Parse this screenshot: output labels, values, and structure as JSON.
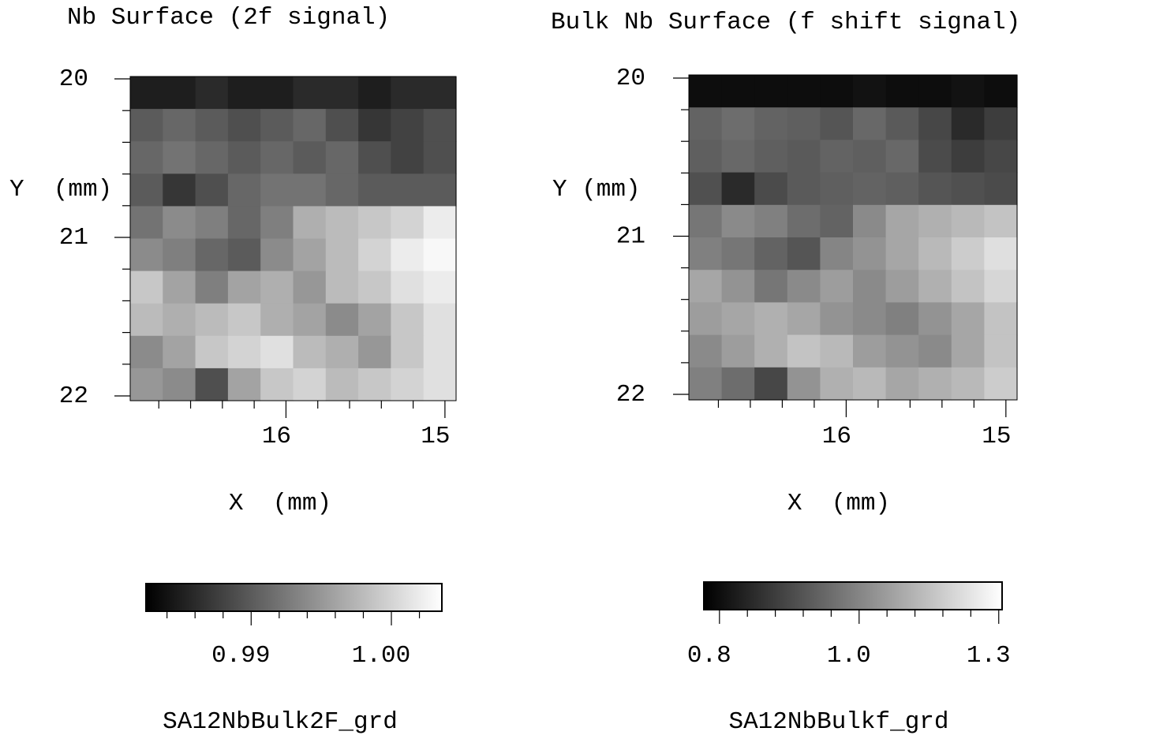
{
  "chart_data": [
    {
      "type": "heatmap",
      "title": "Nb Surface (2f signal)",
      "xlabel": "X  (mm)",
      "ylabel": "Y  (mm)",
      "xlim": [
        16.98,
        14.93
      ],
      "ylim": [
        19.985,
        22.03
      ],
      "xticks": [
        16,
        15
      ],
      "xminorticks": [
        16.8,
        16.6,
        16.4,
        16.2,
        15.8,
        15.6,
        15.4,
        15.2
      ],
      "yticks": [
        20,
        21,
        22
      ],
      "yminorticks": [
        20.2,
        20.4,
        20.6,
        20.8,
        21.2,
        21.4,
        21.6,
        21.8
      ],
      "colorbar": {
        "label": "SA12NbBulk2F_grd",
        "clim": [
          0.9825,
          1.0036
        ],
        "ticks": [
          0.99,
          {
            "value": 1,
            "label": "1.00"
          }
        ],
        "minorticks": [
          0.984,
          0.986,
          0.988,
          0.992,
          0.994,
          0.996,
          0.998,
          1.002
        ]
      },
      "z": [
        [
          0.985,
          0.985,
          0.986,
          0.985,
          0.985,
          0.986,
          0.986,
          0.985,
          0.986,
          0.986
        ],
        [
          0.99,
          0.991,
          0.99,
          0.989,
          0.99,
          0.991,
          0.989,
          0.987,
          0.988,
          0.989
        ],
        [
          0.991,
          0.992,
          0.991,
          0.99,
          0.991,
          0.99,
          0.991,
          0.989,
          0.988,
          0.989
        ],
        [
          0.99,
          0.987,
          0.989,
          0.991,
          0.992,
          0.992,
          0.991,
          0.99,
          0.99,
          0.99
        ],
        [
          0.992,
          0.994,
          0.993,
          0.991,
          0.993,
          0.997,
          0.998,
          0.999,
          1.0,
          1.002
        ],
        [
          0.994,
          0.993,
          0.991,
          0.99,
          0.994,
          0.996,
          0.998,
          1.0,
          1.002,
          1.003
        ],
        [
          0.999,
          0.996,
          0.993,
          0.996,
          0.997,
          0.995,
          0.998,
          0.999,
          1.001,
          1.002
        ],
        [
          0.998,
          0.997,
          0.998,
          0.999,
          0.997,
          0.996,
          0.994,
          0.996,
          0.999,
          1.001
        ],
        [
          0.994,
          0.996,
          0.999,
          1.0,
          1.001,
          0.998,
          0.997,
          0.995,
          0.999,
          1.001
        ],
        [
          0.995,
          0.994,
          0.989,
          0.996,
          0.999,
          1.0,
          0.998,
          0.999,
          1.0,
          1.001
        ]
      ]
    },
    {
      "type": "heatmap",
      "title": "Bulk Nb Surface (f shift signal)",
      "xlabel": "X  (mm)",
      "ylabel": "Y (mm)",
      "xlim": [
        16.985,
        14.93
      ],
      "ylim": [
        19.98,
        22.035
      ],
      "xticks": [
        16,
        15
      ],
      "xminorticks": [
        16.8,
        16.6,
        16.4,
        16.2,
        15.8,
        15.6,
        15.4,
        15.2
      ],
      "yticks": [
        20,
        21,
        22
      ],
      "yminorticks": [
        20.2,
        20.4,
        20.6,
        20.8,
        21.2,
        21.4,
        21.6,
        21.8
      ],
      "colorbar": {
        "label": "SA12NbBulkf_grd",
        "clim": [
          0.772,
          1.306
        ],
        "ticks": [
          0.8,
          {
            "value": 1.05,
            "label": "1.0"
          },
          1.3
        ],
        "minorticks": [
          0.85,
          0.9,
          0.95,
          1.0,
          1.1,
          1.15,
          1.2,
          1.25
        ]
      },
      "z": [
        [
          0.8,
          0.8,
          0.8,
          0.8,
          0.8,
          0.81,
          0.8,
          0.8,
          0.81,
          0.8
        ],
        [
          0.98,
          1.0,
          0.98,
          0.97,
          0.95,
          0.99,
          0.96,
          0.92,
          0.86,
          0.9
        ],
        [
          0.97,
          0.99,
          0.97,
          0.96,
          0.98,
          0.97,
          0.99,
          0.93,
          0.9,
          0.92
        ],
        [
          0.94,
          0.86,
          0.93,
          0.96,
          0.97,
          0.98,
          0.97,
          0.95,
          0.94,
          0.93
        ],
        [
          1.02,
          1.06,
          1.04,
          1.0,
          0.98,
          1.06,
          1.12,
          1.14,
          1.16,
          1.18
        ],
        [
          1.04,
          1.02,
          0.98,
          0.95,
          1.05,
          1.08,
          1.12,
          1.16,
          1.2,
          1.24
        ],
        [
          1.12,
          1.08,
          1.02,
          1.06,
          1.1,
          1.06,
          1.1,
          1.14,
          1.18,
          1.22
        ],
        [
          1.1,
          1.12,
          1.14,
          1.12,
          1.08,
          1.06,
          1.04,
          1.08,
          1.12,
          1.18
        ],
        [
          1.06,
          1.1,
          1.14,
          1.18,
          1.16,
          1.1,
          1.08,
          1.06,
          1.12,
          1.18
        ],
        [
          1.04,
          1.0,
          0.92,
          1.08,
          1.14,
          1.16,
          1.12,
          1.14,
          1.16,
          1.2
        ]
      ]
    }
  ]
}
